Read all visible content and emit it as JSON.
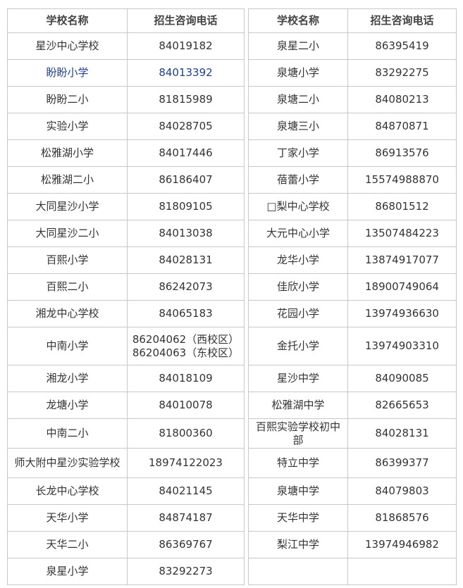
{
  "table": {
    "headers": [
      "学校名称",
      "招生咨询电话"
    ],
    "left": [
      {
        "name": "星沙中心学校",
        "phone": "84019182"
      },
      {
        "name": "盼盼小学",
        "phone": "84013392",
        "color": "#1f3f8f"
      },
      {
        "name": "盼盼二小",
        "phone": "81815989"
      },
      {
        "name": "实验小学",
        "phone": "84028705"
      },
      {
        "name": "松雅湖小学",
        "phone": "84017446"
      },
      {
        "name": "松雅湖二小",
        "phone": "86186407"
      },
      {
        "name": "大同星沙小学",
        "phone": "81809105"
      },
      {
        "name": "大同星沙二小",
        "phone": "84013038"
      },
      {
        "name": "百熙小学",
        "phone": "84028131"
      },
      {
        "name": "百熙二小",
        "phone": "86242073"
      },
      {
        "name": "湘龙中心学校",
        "phone": "84065183"
      },
      {
        "name": "中南小学",
        "phone": [
          "86204062（西校区）",
          "86204063（东校区）"
        ]
      },
      {
        "name": "湘龙小学",
        "phone": "84018109"
      },
      {
        "name": "龙塘小学",
        "phone": "84010078"
      },
      {
        "name": "中南二小",
        "phone": "81800360"
      },
      {
        "name": "师大附中星沙实验学校",
        "phone": "18974122023"
      },
      {
        "name": "长龙中心学校",
        "phone": "84021145"
      },
      {
        "name": "天华小学",
        "phone": "84874187"
      },
      {
        "name": "天华二小",
        "phone": "86369767"
      },
      {
        "name": "泉星小学",
        "phone": "83292273"
      }
    ],
    "right": [
      {
        "name": "泉星二小",
        "phone": "86395419"
      },
      {
        "name": "泉塘小学",
        "phone": "83292275"
      },
      {
        "name": "泉塘二小",
        "phone": "84080213"
      },
      {
        "name": "泉塘三小",
        "phone": "84870871"
      },
      {
        "name": "丁家小学",
        "phone": "86913576"
      },
      {
        "name": "蓓蕾小学",
        "phone": "15574988870"
      },
      {
        "name": "□梨中心学校",
        "phone": "86801512"
      },
      {
        "name": "大元中心小学",
        "phone": "13507484223"
      },
      {
        "name": "龙华小学",
        "phone": "13874917077"
      },
      {
        "name": "佳欣小学",
        "phone": "18900749064"
      },
      {
        "name": "花园小学",
        "phone": "13974936630"
      },
      {
        "name": "金托小学",
        "phone": "13974903310"
      },
      {
        "name": "星沙中学",
        "phone": "84090085"
      },
      {
        "name": "松雅湖中学",
        "phone": "82665653"
      },
      {
        "name": "百熙实验学校初中部",
        "phone": "84028131"
      },
      {
        "name": "特立中学",
        "phone": "86399377"
      },
      {
        "name": "泉塘中学",
        "phone": "84079803"
      },
      {
        "name": "天华中学",
        "phone": "81868576"
      },
      {
        "name": "梨江中学",
        "phone": "13974946982"
      }
    ]
  }
}
